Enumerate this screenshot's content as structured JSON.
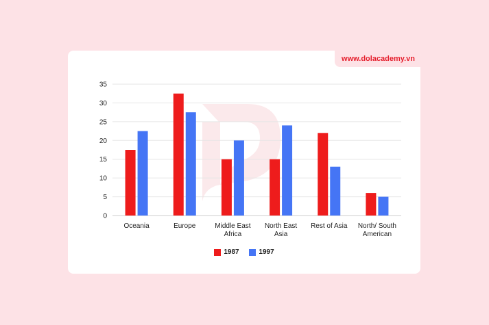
{
  "brand": "www.dolacademy.vn",
  "colors": {
    "series_1987": "#ee1c1c",
    "series_1997": "#4575f5",
    "watermark": "#fbe4e6"
  },
  "chart_data": {
    "type": "bar",
    "title": "",
    "xlabel": "",
    "ylabel": "",
    "categories": [
      [
        "Oceania"
      ],
      [
        "Europe"
      ],
      [
        "Middle East",
        "Africa"
      ],
      [
        "North East",
        "Asia"
      ],
      [
        "Rest of Asia"
      ],
      [
        "North/ South",
        "American"
      ]
    ],
    "series": [
      {
        "name": "1987",
        "values": [
          17.5,
          32.5,
          15,
          15,
          22,
          6
        ]
      },
      {
        "name": "1997",
        "values": [
          22.5,
          27.5,
          20,
          24,
          13,
          5
        ]
      }
    ],
    "ylim": [
      0,
      35
    ],
    "yticks": [
      0,
      5,
      10,
      15,
      20,
      25,
      30,
      35
    ],
    "grid": true,
    "legend_position": "bottom"
  }
}
